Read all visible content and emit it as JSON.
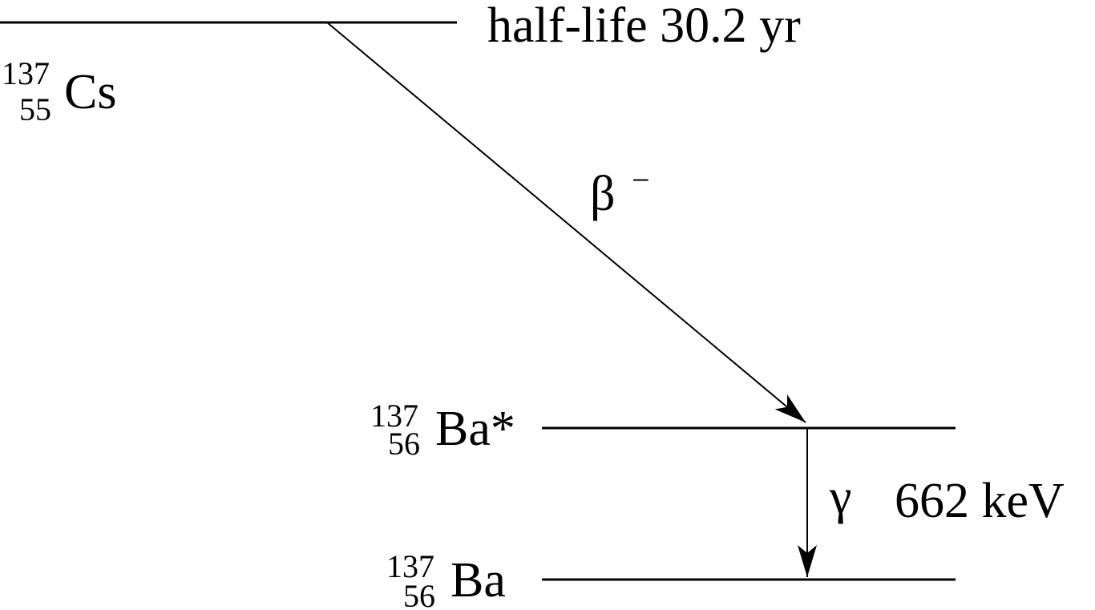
{
  "levels": [
    {
      "mass": "137",
      "atomic": "55",
      "element": "Cs",
      "note": "half-life 30.2 yr"
    },
    {
      "mass": "137",
      "atomic": "56",
      "element": "Ba*"
    },
    {
      "mass": "137",
      "atomic": "56",
      "element": "Ba"
    }
  ],
  "transitions": [
    {
      "label": "β",
      "sup": "−"
    },
    {
      "label": "γ",
      "energy": "662 keV"
    }
  ]
}
